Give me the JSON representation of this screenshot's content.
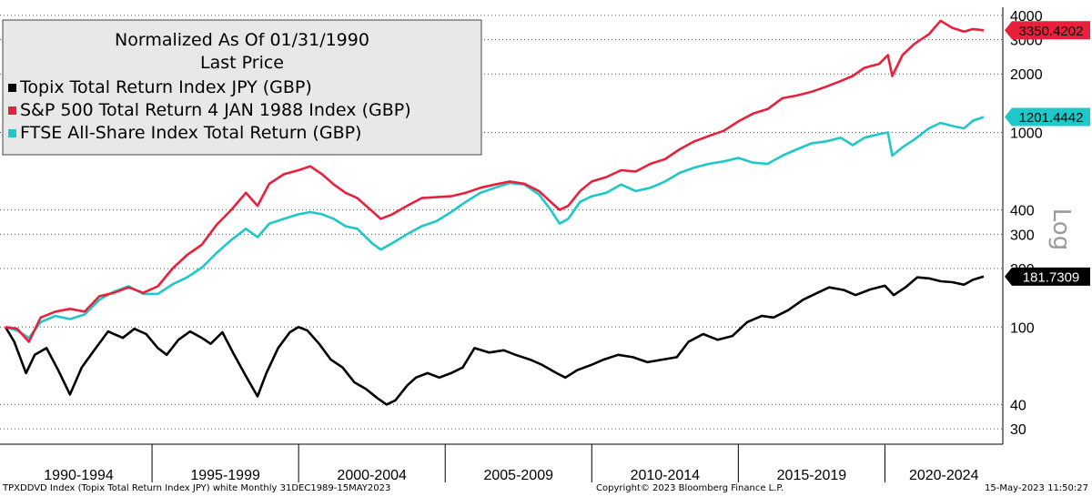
{
  "chart_data": {
    "type": "line",
    "title": "",
    "legend": {
      "position": "top-left",
      "lines": [
        "Normalized As Of 01/31/1990",
        "Last Price"
      ],
      "entries": [
        {
          "name": "Topix Total Return Index JPY (GBP)",
          "color": "#000000"
        },
        {
          "name": "S&P 500 Total Return 4 JAN 1988 Index (GBP)",
          "color": "#e8203c"
        },
        {
          "name": "FTSE All-Share Index Total Return (GBP)",
          "color": "#1ec8c8"
        }
      ]
    },
    "y_scale": "log",
    "y_scale_label": "Log",
    "ylim": [
      25,
      4400
    ],
    "y_ticks": [
      30,
      40,
      100,
      200,
      300,
      400,
      1000,
      2000,
      3000,
      4000
    ],
    "x_range": [
      1990.0,
      2023.37
    ],
    "x_tick_labels": [
      {
        "label": "1990-1994",
        "from": 1990,
        "to": 1995
      },
      {
        "label": "1995-1999",
        "from": 1995,
        "to": 2000
      },
      {
        "label": "2000-2004",
        "from": 2000,
        "to": 2005
      },
      {
        "label": "2005-2009",
        "from": 2005,
        "to": 2010
      },
      {
        "label": "2010-2014",
        "from": 2010,
        "to": 2015
      },
      {
        "label": "2015-2019",
        "from": 2015,
        "to": 2020
      },
      {
        "label": "2020-2024",
        "from": 2020,
        "to": 2025
      }
    ],
    "grid": "horizontal dotted",
    "series": [
      {
        "name": "Topix Total Return Index JPY (GBP)",
        "color": "#000000",
        "last_value_label": "181.7309",
        "points": [
          [
            1990.0,
            100
          ],
          [
            1990.3,
            84
          ],
          [
            1990.7,
            58
          ],
          [
            1991.0,
            72
          ],
          [
            1991.4,
            78
          ],
          [
            1991.8,
            60
          ],
          [
            1992.2,
            45
          ],
          [
            1992.6,
            62
          ],
          [
            1993.0,
            75
          ],
          [
            1993.5,
            95
          ],
          [
            1994.0,
            88
          ],
          [
            1994.4,
            98
          ],
          [
            1994.8,
            92
          ],
          [
            1995.2,
            78
          ],
          [
            1995.5,
            72
          ],
          [
            1995.9,
            86
          ],
          [
            1996.3,
            95
          ],
          [
            1996.7,
            88
          ],
          [
            1997.0,
            82
          ],
          [
            1997.4,
            94
          ],
          [
            1997.8,
            72
          ],
          [
            1998.2,
            56
          ],
          [
            1998.6,
            44
          ],
          [
            1998.9,
            58
          ],
          [
            1999.3,
            78
          ],
          [
            1999.7,
            94
          ],
          [
            2000.0,
            100
          ],
          [
            2000.3,
            96
          ],
          [
            2000.7,
            82
          ],
          [
            2001.1,
            68
          ],
          [
            2001.5,
            62
          ],
          [
            2001.9,
            52
          ],
          [
            2002.3,
            48
          ],
          [
            2002.7,
            43
          ],
          [
            2003.0,
            40
          ],
          [
            2003.3,
            42
          ],
          [
            2003.7,
            50
          ],
          [
            2004.0,
            55
          ],
          [
            2004.4,
            58
          ],
          [
            2004.8,
            55
          ],
          [
            2005.2,
            58
          ],
          [
            2005.6,
            62
          ],
          [
            2006.0,
            78
          ],
          [
            2006.5,
            74
          ],
          [
            2007.0,
            76
          ],
          [
            2007.4,
            72
          ],
          [
            2007.9,
            68
          ],
          [
            2008.3,
            64
          ],
          [
            2008.8,
            58
          ],
          [
            2009.1,
            55
          ],
          [
            2009.5,
            60
          ],
          [
            2010.0,
            64
          ],
          [
            2010.4,
            68
          ],
          [
            2010.9,
            72
          ],
          [
            2011.4,
            70
          ],
          [
            2011.9,
            66
          ],
          [
            2012.4,
            68
          ],
          [
            2012.9,
            70
          ],
          [
            2013.3,
            84
          ],
          [
            2013.8,
            92
          ],
          [
            2014.3,
            86
          ],
          [
            2014.8,
            90
          ],
          [
            2015.3,
            106
          ],
          [
            2015.8,
            114
          ],
          [
            2016.2,
            112
          ],
          [
            2016.7,
            122
          ],
          [
            2017.2,
            138
          ],
          [
            2017.7,
            150
          ],
          [
            2018.1,
            160
          ],
          [
            2018.6,
            155
          ],
          [
            2019.0,
            146
          ],
          [
            2019.5,
            156
          ],
          [
            2020.0,
            163
          ],
          [
            2020.3,
            146
          ],
          [
            2020.7,
            160
          ],
          [
            2021.1,
            180
          ],
          [
            2021.5,
            178
          ],
          [
            2021.9,
            172
          ],
          [
            2022.3,
            170
          ],
          [
            2022.7,
            165
          ],
          [
            2023.0,
            175
          ],
          [
            2023.37,
            181.73
          ]
        ]
      },
      {
        "name": "S&P 500 Total Return 4 JAN 1988 Index (GBP)",
        "color": "#e8203c",
        "last_value_label": "3350.4202",
        "points": [
          [
            1990.0,
            100
          ],
          [
            1990.4,
            98
          ],
          [
            1990.8,
            84
          ],
          [
            1991.2,
            112
          ],
          [
            1991.7,
            120
          ],
          [
            1992.2,
            124
          ],
          [
            1992.7,
            120
          ],
          [
            1993.2,
            144
          ],
          [
            1993.7,
            150
          ],
          [
            1994.2,
            160
          ],
          [
            1994.7,
            150
          ],
          [
            1995.2,
            162
          ],
          [
            1995.7,
            200
          ],
          [
            1996.2,
            235
          ],
          [
            1996.7,
            265
          ],
          [
            1997.2,
            335
          ],
          [
            1997.7,
            400
          ],
          [
            1998.2,
            490
          ],
          [
            1998.6,
            420
          ],
          [
            1999.0,
            545
          ],
          [
            1999.5,
            610
          ],
          [
            2000.0,
            640
          ],
          [
            2000.4,
            670
          ],
          [
            2000.8,
            610
          ],
          [
            2001.2,
            540
          ],
          [
            2001.6,
            490
          ],
          [
            2002.0,
            460
          ],
          [
            2002.5,
            395
          ],
          [
            2002.8,
            360
          ],
          [
            2003.2,
            380
          ],
          [
            2003.7,
            420
          ],
          [
            2004.2,
            460
          ],
          [
            2004.7,
            465
          ],
          [
            2005.2,
            470
          ],
          [
            2005.7,
            490
          ],
          [
            2006.2,
            520
          ],
          [
            2006.7,
            540
          ],
          [
            2007.2,
            560
          ],
          [
            2007.7,
            545
          ],
          [
            2008.2,
            500
          ],
          [
            2008.6,
            440
          ],
          [
            2008.9,
            400
          ],
          [
            2009.2,
            420
          ],
          [
            2009.6,
            500
          ],
          [
            2010.0,
            560
          ],
          [
            2010.5,
            590
          ],
          [
            2011.0,
            640
          ],
          [
            2011.5,
            630
          ],
          [
            2012.0,
            690
          ],
          [
            2012.5,
            730
          ],
          [
            2013.0,
            820
          ],
          [
            2013.5,
            900
          ],
          [
            2014.0,
            960
          ],
          [
            2014.5,
            1020
          ],
          [
            2015.0,
            1140
          ],
          [
            2015.5,
            1250
          ],
          [
            2016.0,
            1320
          ],
          [
            2016.5,
            1500
          ],
          [
            2017.0,
            1550
          ],
          [
            2017.5,
            1620
          ],
          [
            2018.0,
            1720
          ],
          [
            2018.5,
            1840
          ],
          [
            2018.9,
            1950
          ],
          [
            2019.3,
            2150
          ],
          [
            2019.8,
            2250
          ],
          [
            2020.1,
            2500
          ],
          [
            2020.25,
            1950
          ],
          [
            2020.6,
            2500
          ],
          [
            2021.0,
            2850
          ],
          [
            2021.5,
            3200
          ],
          [
            2021.9,
            3750
          ],
          [
            2022.3,
            3450
          ],
          [
            2022.7,
            3300
          ],
          [
            2023.0,
            3400
          ],
          [
            2023.37,
            3350.42
          ]
        ]
      },
      {
        "name": "FTSE All-Share Index Total Return (GBP)",
        "color": "#1ec8c8",
        "last_value_label": "1201.4442",
        "points": [
          [
            1990.0,
            100
          ],
          [
            1990.4,
            96
          ],
          [
            1990.8,
            88
          ],
          [
            1991.2,
            106
          ],
          [
            1991.7,
            114
          ],
          [
            1992.2,
            110
          ],
          [
            1992.7,
            116
          ],
          [
            1993.2,
            138
          ],
          [
            1993.7,
            152
          ],
          [
            1994.2,
            162
          ],
          [
            1994.7,
            148
          ],
          [
            1995.2,
            148
          ],
          [
            1995.7,
            166
          ],
          [
            1996.2,
            180
          ],
          [
            1996.7,
            202
          ],
          [
            1997.2,
            240
          ],
          [
            1997.7,
            280
          ],
          [
            1998.2,
            320
          ],
          [
            1998.6,
            290
          ],
          [
            1999.0,
            340
          ],
          [
            1999.5,
            360
          ],
          [
            2000.0,
            380
          ],
          [
            2000.4,
            390
          ],
          [
            2000.8,
            380
          ],
          [
            2001.2,
            360
          ],
          [
            2001.6,
            330
          ],
          [
            2002.0,
            320
          ],
          [
            2002.5,
            270
          ],
          [
            2002.8,
            250
          ],
          [
            2003.2,
            270
          ],
          [
            2003.7,
            300
          ],
          [
            2004.2,
            330
          ],
          [
            2004.7,
            350
          ],
          [
            2005.2,
            390
          ],
          [
            2005.7,
            440
          ],
          [
            2006.2,
            490
          ],
          [
            2006.7,
            520
          ],
          [
            2007.2,
            550
          ],
          [
            2007.7,
            540
          ],
          [
            2008.2,
            480
          ],
          [
            2008.6,
            400
          ],
          [
            2008.9,
            340
          ],
          [
            2009.2,
            360
          ],
          [
            2009.6,
            440
          ],
          [
            2010.0,
            470
          ],
          [
            2010.5,
            490
          ],
          [
            2011.0,
            540
          ],
          [
            2011.5,
            500
          ],
          [
            2012.0,
            520
          ],
          [
            2012.5,
            560
          ],
          [
            2013.0,
            620
          ],
          [
            2013.5,
            660
          ],
          [
            2014.0,
            690
          ],
          [
            2014.5,
            710
          ],
          [
            2015.0,
            740
          ],
          [
            2015.5,
            700
          ],
          [
            2016.0,
            690
          ],
          [
            2016.5,
            760
          ],
          [
            2017.0,
            820
          ],
          [
            2017.5,
            880
          ],
          [
            2018.0,
            900
          ],
          [
            2018.5,
            940
          ],
          [
            2018.9,
            860
          ],
          [
            2019.3,
            940
          ],
          [
            2019.8,
            980
          ],
          [
            2020.1,
            1000
          ],
          [
            2020.25,
            760
          ],
          [
            2020.6,
            840
          ],
          [
            2021.0,
            920
          ],
          [
            2021.5,
            1050
          ],
          [
            2021.9,
            1120
          ],
          [
            2022.3,
            1080
          ],
          [
            2022.7,
            1050
          ],
          [
            2023.0,
            1150
          ],
          [
            2023.37,
            1201.44
          ]
        ]
      }
    ]
  },
  "footer": {
    "left": "TPXDDVD Index (Topix Total Return Index JPY) white  Monthly 31DEC1989-15MAY2023",
    "middle": "Copyright© 2023 Bloomberg Finance L.P.",
    "right": "15-May-2023 11:50:27"
  }
}
